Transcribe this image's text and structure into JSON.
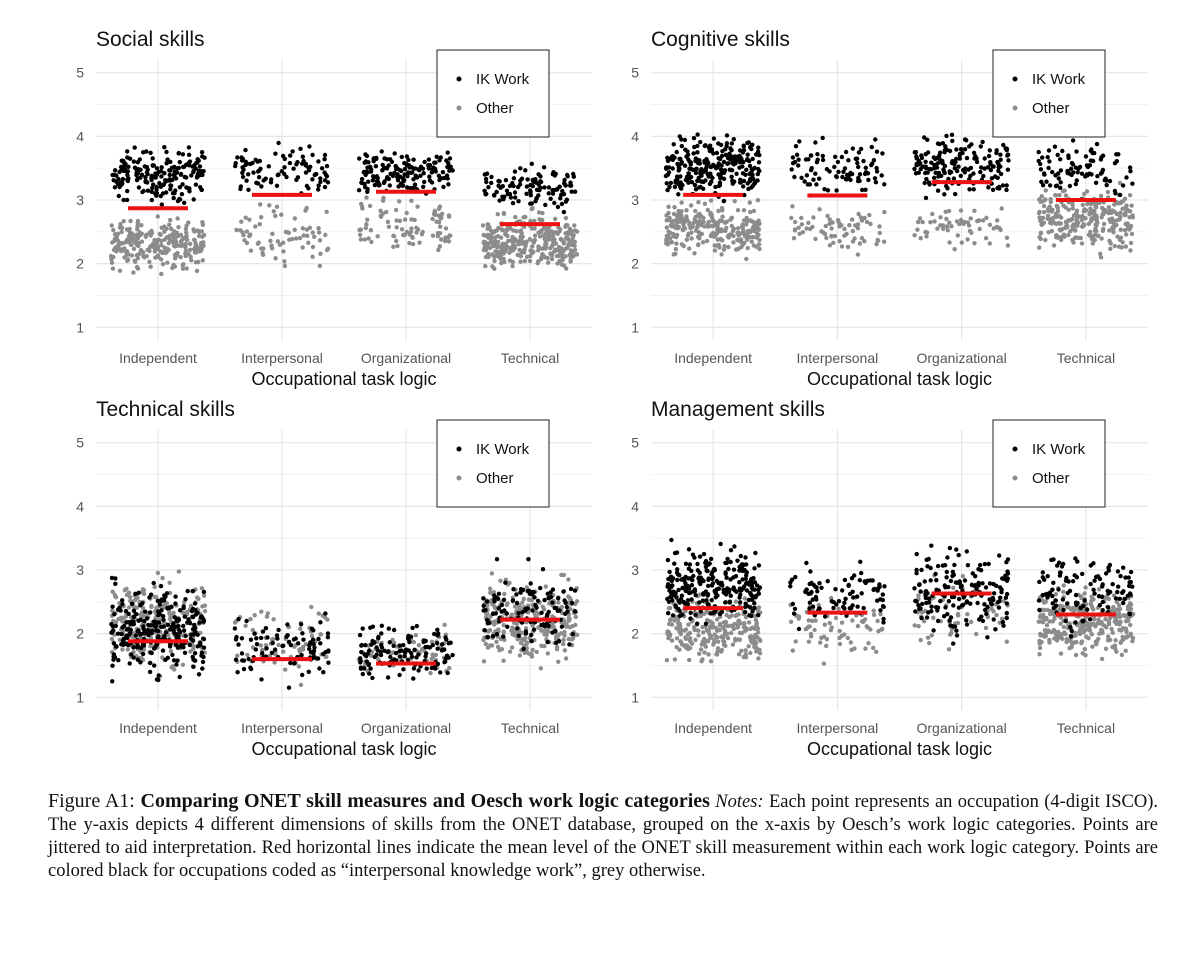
{
  "chart_data": [
    {
      "type": "scatter",
      "title": "Social skills",
      "xlabel": "Occupational task logic",
      "ylabel": "",
      "categories": [
        "Independent",
        "Interpersonal",
        "Organizational",
        "Technical"
      ],
      "yticks": [
        "1",
        "2",
        "3",
        "4",
        "5"
      ],
      "ylim": [
        0.8,
        5.2
      ],
      "grid": true,
      "legend": {
        "position": "top-right",
        "entries": [
          "IK Work",
          "Other"
        ]
      },
      "colors": {
        "ik": "#000000",
        "other": "#8c8c8c",
        "mean": "#ee1111"
      },
      "series": [
        {
          "category": "Independent",
          "mean": 2.87,
          "n_ik": 200,
          "n_other": 260,
          "ik_range": [
            2.85,
            3.95
          ],
          "other_range": [
            1.75,
            2.85
          ]
        },
        {
          "category": "Interpersonal",
          "mean": 3.08,
          "n_ik": 90,
          "n_other": 70,
          "ik_range": [
            2.9,
            3.97
          ],
          "other_range": [
            1.78,
            3.1
          ]
        },
        {
          "category": "Organizational",
          "mean": 3.13,
          "n_ik": 160,
          "n_other": 90,
          "ik_range": [
            2.95,
            3.9
          ],
          "other_range": [
            1.92,
            3.2
          ]
        },
        {
          "category": "Technical",
          "mean": 2.62,
          "n_ik": 110,
          "n_other": 330,
          "ik_range": [
            2.7,
            3.7
          ],
          "other_range": [
            1.75,
            2.95
          ]
        }
      ]
    },
    {
      "type": "scatter",
      "title": "Cognitive skills",
      "xlabel": "Occupational task logic",
      "ylabel": "",
      "categories": [
        "Independent",
        "Interpersonal",
        "Organizational",
        "Technical"
      ],
      "yticks": [
        "1",
        "2",
        "3",
        "4",
        "5"
      ],
      "ylim": [
        0.8,
        5.2
      ],
      "grid": true,
      "legend": {
        "position": "top-right",
        "entries": [
          "IK Work",
          "Other"
        ]
      },
      "colors": {
        "ik": "#000000",
        "other": "#8c8c8c",
        "mean": "#ee1111"
      },
      "series": [
        {
          "category": "Independent",
          "mean": 3.08,
          "n_ik": 260,
          "n_other": 260,
          "ik_range": [
            2.9,
            4.2
          ],
          "other_range": [
            2.0,
            3.1
          ]
        },
        {
          "category": "Interpersonal",
          "mean": 3.07,
          "n_ik": 90,
          "n_other": 70,
          "ik_range": [
            2.95,
            4.05
          ],
          "other_range": [
            2.0,
            3.0
          ]
        },
        {
          "category": "Organizational",
          "mean": 3.28,
          "n_ik": 170,
          "n_other": 60,
          "ik_range": [
            2.9,
            4.2
          ],
          "other_range": [
            2.0,
            3.1
          ]
        },
        {
          "category": "Technical",
          "mean": 3.0,
          "n_ik": 90,
          "n_other": 280,
          "ik_range": [
            2.9,
            4.05
          ],
          "other_range": [
            2.0,
            3.4
          ]
        }
      ]
    },
    {
      "type": "scatter",
      "title": "Technical skills",
      "xlabel": "Occupational task logic",
      "ylabel": "",
      "categories": [
        "Independent",
        "Interpersonal",
        "Organizational",
        "Technical"
      ],
      "yticks": [
        "1",
        "2",
        "3",
        "4",
        "5"
      ],
      "ylim": [
        0.8,
        5.2
      ],
      "grid": true,
      "legend": {
        "position": "top-right",
        "entries": [
          "IK Work",
          "Other"
        ]
      },
      "colors": {
        "ik": "#000000",
        "other": "#8c8c8c",
        "mean": "#ee1111"
      },
      "series": [
        {
          "category": "Independent",
          "mean": 1.88,
          "n_ik": 260,
          "n_other": 260,
          "ik_range": [
            1.1,
            3.0
          ],
          "other_range": [
            1.2,
            3.1
          ]
        },
        {
          "category": "Interpersonal",
          "mean": 1.6,
          "n_ik": 90,
          "n_other": 70,
          "ik_range": [
            1.1,
            2.45
          ],
          "other_range": [
            1.15,
            2.6
          ]
        },
        {
          "category": "Organizational",
          "mean": 1.53,
          "n_ik": 130,
          "n_other": 60,
          "ik_range": [
            1.1,
            2.3
          ],
          "other_range": [
            1.2,
            2.2
          ]
        },
        {
          "category": "Technical",
          "mean": 2.22,
          "n_ik": 120,
          "n_other": 300,
          "ik_range": [
            1.5,
            3.2
          ],
          "other_range": [
            1.3,
            3.1
          ]
        }
      ]
    },
    {
      "type": "scatter",
      "title": "Management skills",
      "xlabel": "Occupational task logic",
      "ylabel": "",
      "categories": [
        "Independent",
        "Interpersonal",
        "Organizational",
        "Technical"
      ],
      "yticks": [
        "1",
        "2",
        "3",
        "4",
        "5"
      ],
      "ylim": [
        0.8,
        5.2
      ],
      "grid": true,
      "legend": {
        "position": "top-right",
        "entries": [
          "IK Work",
          "Other"
        ]
      },
      "colors": {
        "ik": "#000000",
        "other": "#8c8c8c",
        "mean": "#ee1111"
      },
      "series": [
        {
          "category": "Independent",
          "mean": 2.4,
          "n_ik": 260,
          "n_other": 260,
          "ik_range": [
            2.0,
            3.55
          ],
          "other_range": [
            1.4,
            2.8
          ]
        },
        {
          "category": "Interpersonal",
          "mean": 2.33,
          "n_ik": 90,
          "n_other": 70,
          "ik_range": [
            1.9,
            3.2
          ],
          "other_range": [
            1.4,
            2.8
          ]
        },
        {
          "category": "Organizational",
          "mean": 2.63,
          "n_ik": 170,
          "n_other": 60,
          "ik_range": [
            1.75,
            3.55
          ],
          "other_range": [
            1.55,
            3.1
          ]
        },
        {
          "category": "Technical",
          "mean": 2.3,
          "n_ik": 110,
          "n_other": 300,
          "ik_range": [
            1.9,
            3.55
          ],
          "other_range": [
            1.45,
            2.9
          ]
        }
      ]
    }
  ],
  "caption": {
    "label": "Figure A1: ",
    "title": "Comparing ONET skill measures and Oesch work logic categories",
    "notes_label": "Notes:",
    "notes_text": " Each point represents an occupation (4-digit ISCO). The y-axis depicts 4 different dimensions of skills from the ONET database, grouped on the x-axis by Oesch’s work logic categories. Points are jittered to aid interpretation. Red horizontal lines indicate the mean level of the ONET skill measurement within each work logic category. Points are colored black for occupations coded as “interpersonal knowledge work”, grey otherwise."
  }
}
